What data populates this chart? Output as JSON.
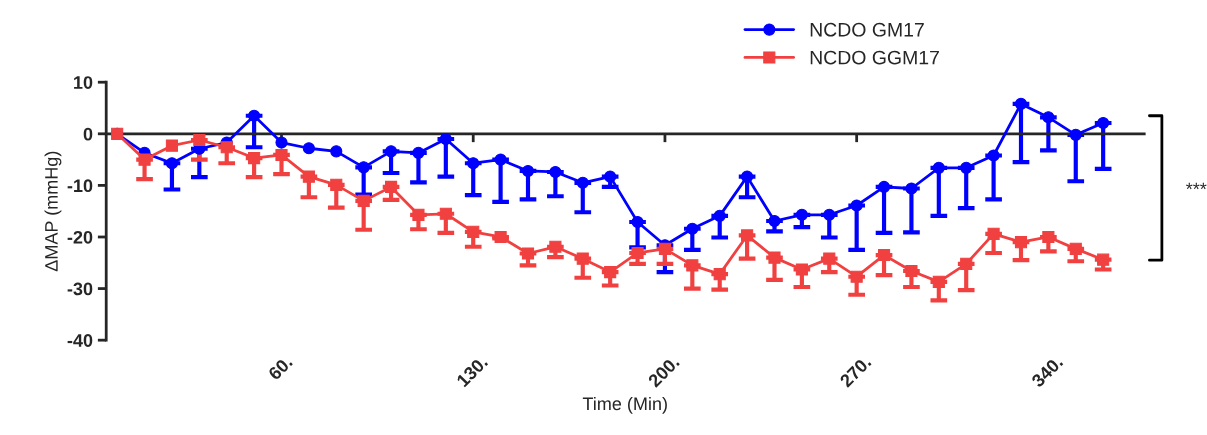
{
  "chart_data": {
    "type": "line",
    "xlabel": "Time (Min)",
    "ylabel": "ΔMAP (mmHg)",
    "x": [
      0,
      10,
      20,
      30,
      40,
      50,
      60,
      70,
      80,
      90,
      100,
      110,
      120,
      130,
      140,
      150,
      160,
      170,
      180,
      190,
      200,
      210,
      220,
      230,
      240,
      250,
      260,
      270,
      280,
      290,
      300,
      310,
      320,
      330,
      340,
      350,
      360
    ],
    "series": [
      {
        "name": "NCDO GM17",
        "color": "#0000ff",
        "marker": "circle",
        "values": [
          0,
          -3.7,
          -5.7,
          -2.9,
          -1.7,
          3.5,
          -1.7,
          -2.8,
          -3.4,
          -6.5,
          -3.4,
          -3.7,
          -1.0,
          -5.7,
          -5.0,
          -7.2,
          -7.4,
          -9.5,
          -8.3,
          -17.1,
          -21.6,
          -18.4,
          -15.9,
          -8.3,
          -16.9,
          -15.7,
          -15.7,
          -13.9,
          -10.3,
          -10.6,
          -6.6,
          -6.6,
          -4.2,
          5.8,
          3.2,
          -0.2,
          2.1
        ],
        "errors": [
          null,
          null,
          [
            -10.8,
            -5.7
          ],
          [
            -8.4,
            -2.9
          ],
          null,
          [
            -2.6,
            3.5
          ],
          null,
          null,
          null,
          [
            -11.8,
            -6.5
          ],
          [
            -7.6,
            -3.4
          ],
          [
            -9.4,
            -3.7
          ],
          [
            -8.3,
            -1.0
          ],
          [
            -11.9,
            -5.7
          ],
          [
            -13.2,
            -5.0
          ],
          [
            -12.7,
            -7.2
          ],
          [
            -12.1,
            -7.4
          ],
          [
            -15.2,
            -9.5
          ],
          [
            -10.3,
            -8.3
          ],
          [
            -22.0,
            -17.1
          ],
          [
            -26.8,
            -21.6
          ],
          [
            -22.5,
            -18.4
          ],
          [
            -20.1,
            -15.9
          ],
          [
            -12.3,
            -8.3
          ],
          [
            -18.9,
            -16.9
          ],
          [
            -18.1,
            -15.7
          ],
          [
            -20.1,
            -15.7
          ],
          [
            -22.5,
            -13.9
          ],
          [
            -19.2,
            -10.3
          ],
          [
            -19.1,
            -10.6
          ],
          [
            -15.9,
            -6.6
          ],
          [
            -14.4,
            -6.6
          ],
          [
            -12.7,
            -4.2
          ],
          [
            -5.5,
            5.8
          ],
          [
            -3.2,
            3.2
          ],
          [
            -9.2,
            -0.2
          ],
          [
            -6.8,
            2.1
          ]
        ]
      },
      {
        "name": "NCDO GGM17",
        "color": "#f04040",
        "marker": "square",
        "values": [
          0,
          -5.0,
          -2.3,
          -1.2,
          -2.6,
          -4.7,
          -4.1,
          -8.3,
          -9.9,
          -13.0,
          -10.3,
          -15.7,
          -15.5,
          -19.0,
          -20.0,
          -23.2,
          -21.9,
          -24.2,
          -26.8,
          -23.1,
          -22.3,
          -25.5,
          -27.2,
          -19.7,
          -24.0,
          -26.3,
          -24.2,
          -27.7,
          -23.5,
          -26.6,
          -28.7,
          -25.2,
          -19.4,
          -21.0,
          -20.0,
          -22.3,
          -24.4
        ],
        "errors": [
          null,
          [
            -8.8,
            -5.0
          ],
          null,
          [
            -5.0,
            -1.2
          ],
          [
            -5.7,
            -2.6
          ],
          [
            -8.4,
            -4.7
          ],
          [
            -7.8,
            -4.1
          ],
          [
            -12.3,
            -8.3
          ],
          [
            -14.3,
            -9.9
          ],
          [
            -18.6,
            -13.0
          ],
          [
            -12.8,
            -10.3
          ],
          [
            -18.5,
            -15.7
          ],
          [
            -19.2,
            -15.5
          ],
          [
            -21.9,
            -19.0
          ],
          [
            -20.3,
            -20.0
          ],
          [
            -25.5,
            -23.2
          ],
          [
            -23.9,
            -21.9
          ],
          [
            -27.9,
            -24.2
          ],
          [
            -29.4,
            -26.8
          ],
          [
            -25.2,
            -23.1
          ],
          [
            -25.2,
            -22.3
          ],
          [
            -30.0,
            -25.5
          ],
          [
            -30.2,
            -27.2
          ],
          [
            -24.2,
            -19.7
          ],
          [
            -28.3,
            -24.0
          ],
          [
            -29.7,
            -26.3
          ],
          [
            -26.8,
            -24.2
          ],
          [
            -31.2,
            -27.7
          ],
          [
            -27.4,
            -23.5
          ],
          [
            -29.7,
            -26.6
          ],
          [
            -32.3,
            -28.7
          ],
          [
            -30.3,
            -25.2
          ],
          [
            -23.1,
            -19.4
          ],
          [
            -24.5,
            -21.0
          ],
          [
            -22.8,
            -20.0
          ],
          [
            -24.7,
            -22.3
          ],
          [
            -26.3,
            -24.4
          ]
        ]
      }
    ],
    "xlim": [
      -4,
      375
    ],
    "xticks": [
      {
        "value": 60,
        "label": "60."
      },
      {
        "value": 130,
        "label": "130."
      },
      {
        "value": 200,
        "label": "200."
      },
      {
        "value": 270,
        "label": "270."
      },
      {
        "value": 340,
        "label": "340."
      }
    ],
    "ylim": [
      -40,
      10
    ],
    "yticks": [
      -40,
      -30,
      -20,
      -10,
      0,
      10
    ],
    "annotations": [
      "***"
    ],
    "legend": "top right",
    "line_style": "solid"
  }
}
